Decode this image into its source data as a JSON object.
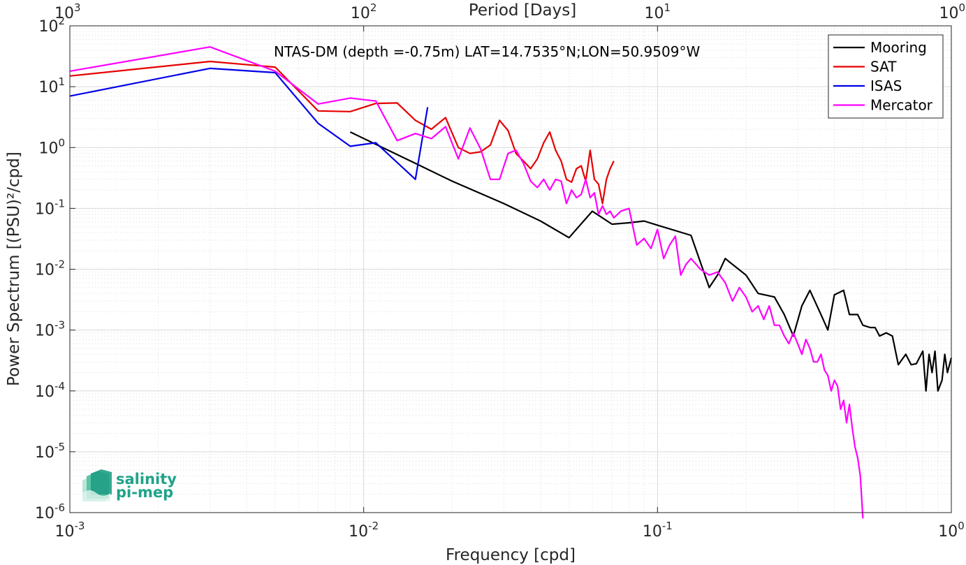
{
  "chart_data": {
    "type": "line",
    "title": "NTAS-DM (depth =-0.75m) LAT=14.7535°N;LON=50.9509°W",
    "xlabel": "Frequency [cpd]",
    "ylabel": "Power Spectrum [(PSU)²/cpd]",
    "top_axis_label": "Period [Days]",
    "x_scale": "log",
    "y_scale": "log",
    "xlim": [
      0.001,
      1
    ],
    "ylim": [
      1e-06,
      100
    ],
    "x_ticks": [
      {
        "value": 0.001,
        "base": "10",
        "exp": "-3"
      },
      {
        "value": 0.01,
        "base": "10",
        "exp": "-2"
      },
      {
        "value": 0.1,
        "base": "10",
        "exp": "-1"
      },
      {
        "value": 1,
        "base": "10",
        "exp": "0"
      }
    ],
    "y_ticks": [
      {
        "value": 100,
        "base": "10",
        "exp": "2"
      },
      {
        "value": 10,
        "base": "10",
        "exp": "1"
      },
      {
        "value": 1,
        "base": "10",
        "exp": "0"
      },
      {
        "value": 0.1,
        "base": "10",
        "exp": "-1"
      },
      {
        "value": 0.01,
        "base": "10",
        "exp": "-2"
      },
      {
        "value": 0.001,
        "base": "10",
        "exp": "-3"
      },
      {
        "value": 0.0001,
        "base": "10",
        "exp": "-4"
      },
      {
        "value": 1e-05,
        "base": "10",
        "exp": "-5"
      },
      {
        "value": 1e-06,
        "base": "10",
        "exp": "-6"
      }
    ],
    "top_ticks": [
      {
        "value": 1000,
        "base": "10",
        "exp": "3"
      },
      {
        "value": 100,
        "base": "10",
        "exp": "2"
      },
      {
        "value": 10,
        "base": "10",
        "exp": "1"
      },
      {
        "value": 1,
        "base": "10",
        "exp": "0"
      }
    ],
    "grid": true,
    "legend_position": "top-right",
    "series": [
      {
        "name": "Mooring",
        "color": "#000000",
        "x": [
          0.009,
          0.015,
          0.02,
          0.03,
          0.04,
          0.05,
          0.06,
          0.07,
          0.08,
          0.09,
          0.1,
          0.13,
          0.15,
          0.16,
          0.17,
          0.18,
          0.2,
          0.22,
          0.25,
          0.27,
          0.29,
          0.31,
          0.33,
          0.36,
          0.38,
          0.4,
          0.43,
          0.45,
          0.48,
          0.5,
          0.53,
          0.55,
          0.57,
          0.6,
          0.63,
          0.66,
          0.7,
          0.73,
          0.76,
          0.8,
          0.82,
          0.84,
          0.86,
          0.88,
          0.9,
          0.93,
          0.95,
          0.97,
          1.0
        ],
        "y": [
          1.8,
          0.55,
          0.28,
          0.12,
          0.062,
          0.033,
          0.09,
          0.055,
          0.058,
          0.062,
          0.053,
          0.036,
          0.005,
          0.008,
          0.015,
          0.012,
          0.008,
          0.004,
          0.0035,
          0.0018,
          0.0008,
          0.0025,
          0.0045,
          0.0018,
          0.001,
          0.0038,
          0.0045,
          0.0018,
          0.0018,
          0.0012,
          0.0011,
          0.0011,
          0.0008,
          0.0009,
          0.0008,
          0.00027,
          0.0004,
          0.00027,
          0.00028,
          0.00045,
          0.0001,
          0.0004,
          0.0002,
          0.00045,
          0.0001,
          0.00015,
          0.0004,
          0.0002,
          0.00035
        ]
      },
      {
        "name": "SAT",
        "color": "#e60000",
        "x": [
          0.001,
          0.003,
          0.005,
          0.007,
          0.009,
          0.011,
          0.013,
          0.015,
          0.017,
          0.019,
          0.021,
          0.023,
          0.025,
          0.027,
          0.029,
          0.031,
          0.033,
          0.035,
          0.037,
          0.039,
          0.041,
          0.043,
          0.045,
          0.047,
          0.049,
          0.051,
          0.053,
          0.055,
          0.057,
          0.059,
          0.061,
          0.063,
          0.065,
          0.067,
          0.069,
          0.071
        ],
        "y": [
          15,
          26,
          21,
          4.0,
          3.9,
          5.3,
          5.4,
          2.8,
          2.0,
          3.1,
          1.0,
          0.8,
          0.85,
          1.1,
          2.8,
          1.9,
          0.8,
          0.6,
          0.45,
          0.65,
          1.2,
          1.8,
          0.9,
          0.6,
          0.3,
          0.27,
          0.45,
          0.5,
          0.28,
          0.9,
          0.3,
          0.25,
          0.12,
          0.3,
          0.45,
          0.6
        ]
      },
      {
        "name": "ISAS",
        "color": "#0000e6",
        "x": [
          0.001,
          0.003,
          0.005,
          0.007,
          0.009,
          0.011,
          0.015,
          0.0165
        ],
        "y": [
          7.0,
          20,
          17,
          2.5,
          1.05,
          1.2,
          0.3,
          4.6
        ]
      },
      {
        "name": "Mercator",
        "color": "#ff00ff",
        "x": [
          0.001,
          0.003,
          0.005,
          0.007,
          0.009,
          0.011,
          0.013,
          0.015,
          0.017,
          0.019,
          0.021,
          0.023,
          0.025,
          0.027,
          0.029,
          0.031,
          0.033,
          0.035,
          0.037,
          0.039,
          0.041,
          0.043,
          0.045,
          0.047,
          0.049,
          0.051,
          0.053,
          0.055,
          0.057,
          0.059,
          0.061,
          0.063,
          0.065,
          0.067,
          0.069,
          0.071,
          0.075,
          0.08,
          0.085,
          0.09,
          0.095,
          0.1,
          0.105,
          0.11,
          0.115,
          0.12,
          0.125,
          0.13,
          0.14,
          0.15,
          0.16,
          0.17,
          0.18,
          0.19,
          0.2,
          0.21,
          0.22,
          0.23,
          0.24,
          0.25,
          0.26,
          0.27,
          0.28,
          0.29,
          0.3,
          0.31,
          0.32,
          0.33,
          0.34,
          0.35,
          0.36,
          0.37,
          0.38,
          0.39,
          0.4,
          0.41,
          0.42,
          0.43,
          0.44,
          0.45,
          0.46,
          0.47,
          0.48,
          0.49,
          0.5
        ],
        "y": [
          18,
          45,
          18,
          5.2,
          6.5,
          5.8,
          1.3,
          1.7,
          1.4,
          2.2,
          0.65,
          2.1,
          0.95,
          0.3,
          0.3,
          0.8,
          0.9,
          0.55,
          0.28,
          0.22,
          0.3,
          0.2,
          0.3,
          0.28,
          0.12,
          0.2,
          0.15,
          0.17,
          0.3,
          0.15,
          0.18,
          0.08,
          0.11,
          0.08,
          0.09,
          0.07,
          0.09,
          0.1,
          0.025,
          0.032,
          0.022,
          0.045,
          0.015,
          0.025,
          0.035,
          0.008,
          0.012,
          0.015,
          0.01,
          0.008,
          0.009,
          0.006,
          0.003,
          0.005,
          0.0035,
          0.002,
          0.0025,
          0.0015,
          0.0025,
          0.0012,
          0.0012,
          0.0008,
          0.0006,
          0.0009,
          0.0006,
          0.0004,
          0.0007,
          0.0005,
          0.0003,
          0.0003,
          0.0004,
          0.00022,
          0.00018,
          0.0001,
          0.00015,
          0.00012,
          5e-05,
          7e-05,
          3e-05,
          6e-05,
          2.5e-05,
          1.2e-05,
          8e-06,
          4e-06,
          8e-07
        ]
      }
    ]
  },
  "logo": {
    "line1": "salinity",
    "line2": "pi-mep"
  }
}
